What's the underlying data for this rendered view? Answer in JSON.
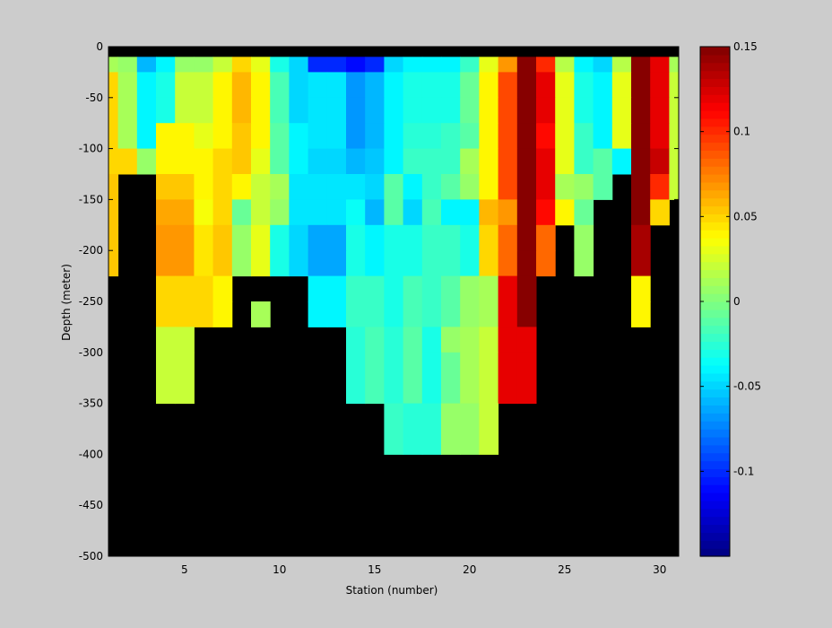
{
  "chart_data": {
    "type": "heatmap",
    "xlabel": "Station (number)",
    "ylabel": "Depth (meter)",
    "xlim": [
      1,
      31
    ],
    "ylim": [
      -500,
      0
    ],
    "xticks": [
      5,
      10,
      15,
      20,
      25,
      30
    ],
    "yticks": [
      0,
      -50,
      -100,
      -150,
      -200,
      -250,
      -300,
      -350,
      -400,
      -450,
      -500
    ],
    "colorbar": {
      "range": [
        -0.15,
        0.15
      ],
      "ticks": [
        0.15,
        0.1,
        0.05,
        0,
        -0.05,
        -0.1
      ],
      "colormap": "jet",
      "levels": 64
    },
    "background_color": "#000000",
    "stations": [
      1,
      2,
      3,
      4,
      5,
      6,
      7,
      8,
      9,
      10,
      11,
      12,
      13,
      14,
      15,
      16,
      17,
      18,
      19,
      20,
      21,
      22,
      23,
      24,
      25,
      26,
      27,
      28,
      29,
      30,
      31
    ],
    "depth_bins_top": [
      0,
      -10,
      -25,
      -50,
      -75,
      -100,
      -125,
      -150,
      -175,
      -200,
      -225,
      -250,
      -275,
      -300,
      -350,
      -400
    ],
    "depth_bins_bottom": [
      -5,
      -25,
      -50,
      -75,
      -100,
      -125,
      -150,
      -175,
      -200,
      -225,
      -250,
      -275,
      -300,
      -350,
      -400,
      -500
    ],
    "values": [
      [
        null,
        null,
        null,
        null,
        null,
        null,
        null,
        null,
        null,
        null,
        null,
        null,
        null,
        null,
        null,
        null,
        null,
        null,
        null,
        null,
        null,
        null,
        null,
        null,
        null,
        null,
        null,
        null,
        null,
        null,
        null
      ],
      [
        0.01,
        0.005,
        -0.06,
        -0.04,
        0.005,
        0.005,
        0.02,
        0.05,
        0.03,
        -0.03,
        -0.05,
        -0.1,
        -0.1,
        -0.11,
        -0.1,
        -0.05,
        -0.04,
        -0.04,
        -0.04,
        -0.02,
        0.03,
        0.07,
        0.15,
        0.1,
        0.015,
        -0.04,
        -0.05,
        0.015,
        0.15,
        0.12,
        0.01
      ],
      [
        0.05,
        0.01,
        -0.04,
        -0.03,
        0.02,
        0.02,
        0.04,
        0.06,
        0.04,
        -0.015,
        -0.05,
        -0.045,
        -0.045,
        -0.07,
        -0.06,
        -0.04,
        -0.03,
        -0.03,
        -0.03,
        -0.005,
        0.04,
        0.09,
        0.15,
        0.12,
        0.03,
        -0.03,
        -0.04,
        0.03,
        0.15,
        0.12,
        0.02
      ],
      [
        0.05,
        0.01,
        -0.04,
        -0.03,
        0.02,
        0.02,
        0.04,
        0.06,
        0.04,
        -0.015,
        -0.05,
        -0.045,
        -0.045,
        -0.07,
        -0.06,
        -0.04,
        -0.03,
        -0.03,
        -0.03,
        -0.005,
        0.04,
        0.09,
        0.15,
        0.12,
        0.03,
        -0.03,
        -0.04,
        0.03,
        0.15,
        0.12,
        0.02
      ],
      [
        0.05,
        0.01,
        -0.04,
        0.04,
        0.04,
        0.03,
        0.04,
        0.055,
        0.04,
        -0.01,
        -0.04,
        -0.045,
        -0.045,
        -0.07,
        -0.06,
        -0.04,
        -0.025,
        -0.025,
        -0.02,
        -0.01,
        0.04,
        0.09,
        0.15,
        0.11,
        0.03,
        -0.02,
        -0.04,
        0.03,
        0.15,
        0.12,
        0.02
      ],
      [
        0.05,
        0.05,
        0.005,
        0.04,
        0.04,
        0.04,
        0.05,
        0.055,
        0.03,
        -0.01,
        -0.04,
        -0.05,
        -0.05,
        -0.06,
        -0.055,
        -0.04,
        -0.02,
        -0.02,
        -0.02,
        0.01,
        0.04,
        0.09,
        0.15,
        0.12,
        0.03,
        -0.02,
        -0.01,
        -0.04,
        0.15,
        0.13,
        0.02
      ],
      [
        0.055,
        null,
        null,
        0.055,
        0.055,
        0.04,
        0.05,
        0.04,
        0.02,
        0.01,
        -0.045,
        -0.045,
        -0.045,
        -0.045,
        -0.05,
        -0.01,
        -0.04,
        -0.02,
        -0.01,
        0.005,
        0.04,
        0.09,
        0.15,
        0.12,
        0.01,
        0.005,
        -0.01,
        null,
        0.15,
        0.1,
        0.02
      ],
      [
        0.055,
        null,
        null,
        0.065,
        0.065,
        0.035,
        0.05,
        -0.005,
        0.02,
        0.005,
        -0.045,
        -0.045,
        -0.045,
        -0.035,
        -0.06,
        -0.01,
        -0.05,
        -0.015,
        -0.04,
        -0.04,
        0.06,
        0.07,
        0.15,
        0.11,
        0.04,
        -0.005,
        null,
        null,
        0.15,
        0.05,
        null
      ],
      [
        0.055,
        null,
        null,
        0.07,
        0.07,
        0.045,
        0.055,
        0.005,
        0.03,
        -0.03,
        -0.05,
        -0.065,
        -0.065,
        -0.03,
        -0.04,
        -0.03,
        -0.03,
        -0.02,
        -0.02,
        -0.03,
        0.05,
        0.08,
        0.15,
        0.08,
        null,
        0.005,
        null,
        null,
        0.14,
        null,
        null
      ],
      [
        0.055,
        null,
        null,
        0.07,
        0.07,
        0.045,
        0.055,
        0.005,
        0.03,
        -0.03,
        -0.05,
        -0.065,
        -0.065,
        -0.03,
        -0.04,
        -0.03,
        -0.03,
        -0.02,
        -0.02,
        -0.03,
        0.05,
        0.08,
        0.15,
        0.08,
        null,
        0.005,
        null,
        null,
        0.14,
        null,
        null
      ],
      [
        null,
        null,
        null,
        0.05,
        0.05,
        0.05,
        0.04,
        null,
        null,
        null,
        null,
        -0.04,
        -0.04,
        -0.02,
        -0.02,
        -0.03,
        -0.015,
        -0.02,
        -0.01,
        0.005,
        0.01,
        0.12,
        0.15,
        null,
        null,
        null,
        null,
        null,
        0.04,
        null,
        null
      ],
      [
        null,
        null,
        null,
        0.05,
        0.05,
        0.05,
        0.04,
        null,
        0.01,
        null,
        null,
        -0.04,
        -0.04,
        -0.02,
        -0.02,
        -0.03,
        -0.015,
        -0.02,
        -0.01,
        0.005,
        0.01,
        0.12,
        0.15,
        null,
        null,
        null,
        null,
        null,
        0.04,
        null,
        null
      ],
      [
        null,
        null,
        null,
        0.02,
        0.02,
        null,
        null,
        null,
        null,
        null,
        null,
        null,
        null,
        -0.025,
        -0.015,
        -0.025,
        -0.01,
        -0.03,
        0.005,
        0.01,
        0.02,
        0.12,
        0.12,
        null,
        null,
        null,
        null,
        null,
        null,
        null,
        null
      ],
      [
        null,
        null,
        null,
        0.02,
        0.02,
        null,
        null,
        null,
        null,
        null,
        null,
        null,
        null,
        -0.025,
        -0.015,
        -0.025,
        -0.01,
        -0.03,
        -0.005,
        0.01,
        0.02,
        0.12,
        0.12,
        null,
        null,
        null,
        null,
        null,
        null,
        null,
        null
      ],
      [
        null,
        null,
        null,
        null,
        null,
        null,
        null,
        null,
        null,
        null,
        null,
        null,
        null,
        null,
        null,
        -0.02,
        -0.025,
        -0.025,
        0.005,
        0.005,
        0.02,
        null,
        null,
        null,
        null,
        null,
        null,
        null,
        null,
        null,
        null
      ],
      [
        null,
        null,
        null,
        null,
        null,
        null,
        null,
        null,
        null,
        null,
        null,
        null,
        null,
        null,
        null,
        null,
        null,
        null,
        null,
        null,
        null,
        null,
        null,
        null,
        null,
        null,
        null,
        null,
        null,
        null,
        null
      ]
    ]
  }
}
